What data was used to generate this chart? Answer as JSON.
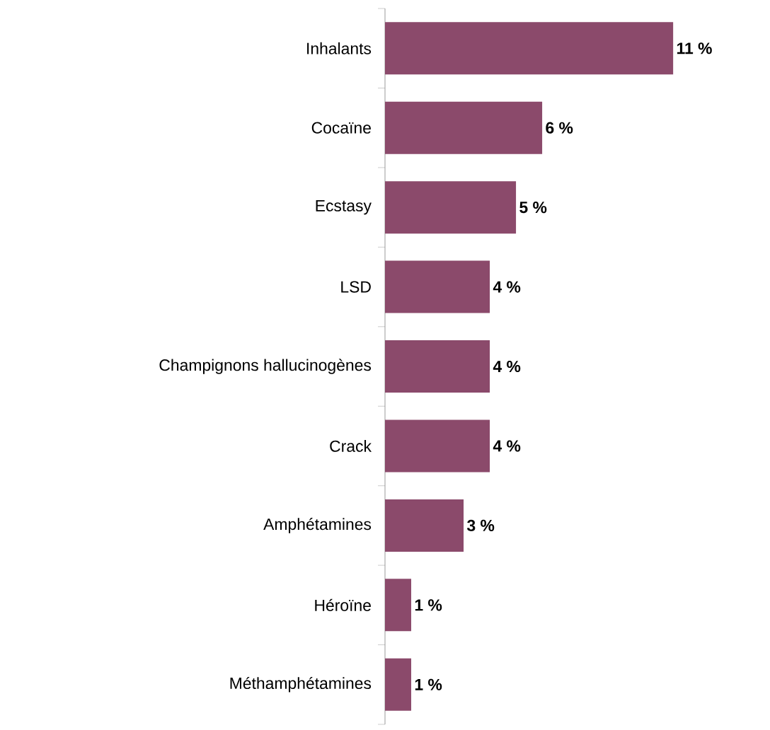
{
  "chart_data": {
    "type": "bar",
    "orientation": "horizontal",
    "categories": [
      "Inhalants",
      "Cocaïne",
      "Ecstasy",
      "LSD",
      "Champignons hallucinogènes",
      "Crack",
      "Amphétamines",
      "Héroïne",
      "Méthamphétamines"
    ],
    "values": [
      11,
      6,
      5,
      4,
      4,
      4,
      3,
      1,
      1
    ],
    "value_labels": [
      "11 %",
      "6 %",
      "5 %",
      "4 %",
      "4 %",
      "4 %",
      "3 %",
      "1 %",
      "1 %"
    ],
    "color": "#8b4a6b"
  }
}
